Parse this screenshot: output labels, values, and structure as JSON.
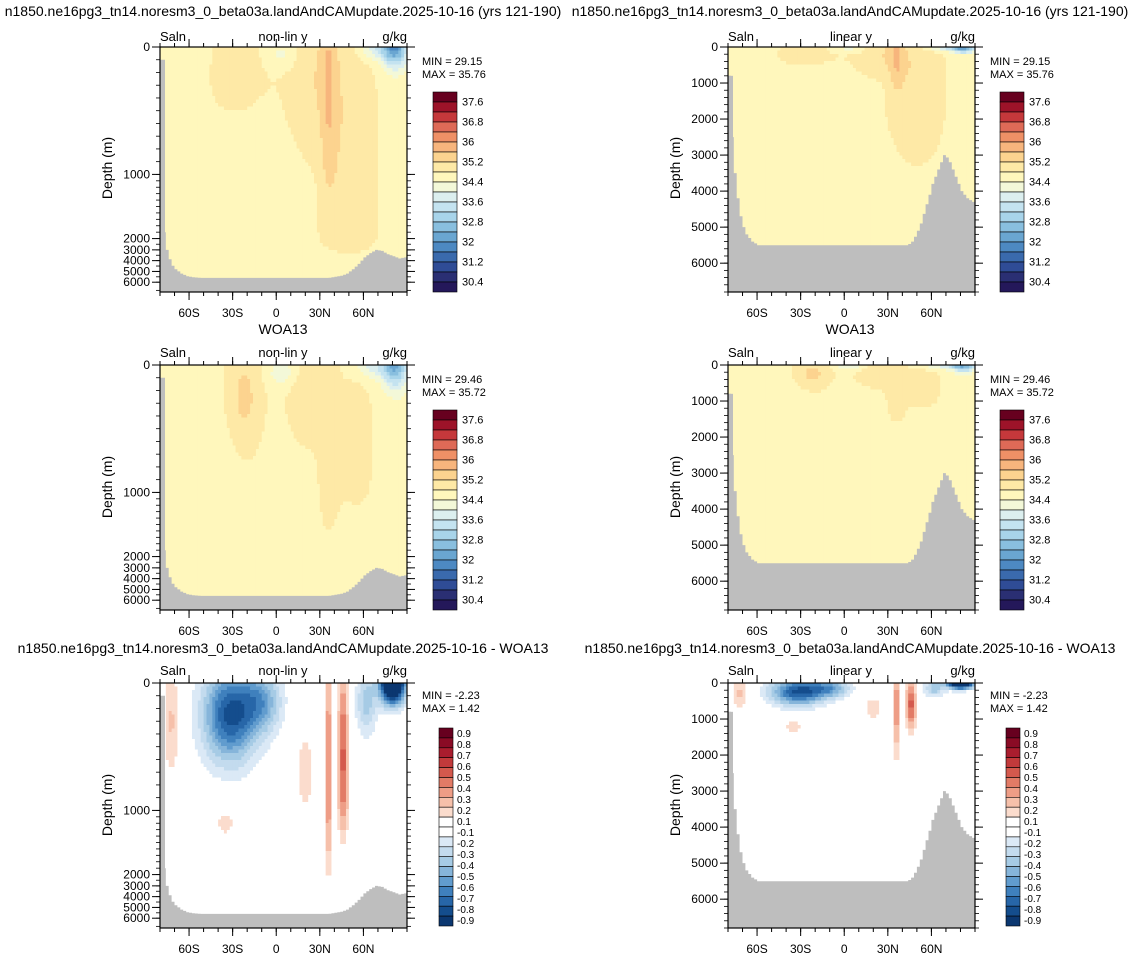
{
  "figure": {
    "titles": {
      "model": "n1850.ne16pg3_tn14.noresm3_0_beta03a.landAndCAMupdate.2025-10-16 (yrs 121-190)",
      "obs": "WOA13",
      "diff": "n1850.ne16pg3_tn14.noresm3_0_beta03a.landAndCAMupdate.2025-10-16 - WOA13"
    },
    "variable": "Saln",
    "units": "g/kg",
    "modes": {
      "nonlin": "non-lin y",
      "lin": "linear y"
    },
    "ylabel": "Depth (m)",
    "colors": {
      "land": "#bebebe",
      "background": "#ffffff",
      "frame": "#000000"
    }
  },
  "chart_data": [
    {
      "id": "model-nonlin",
      "type": "heatmap",
      "field": "model",
      "yscale": "nonlinear",
      "title": "n1850.ne16pg3_tn14.noresm3_0_beta03a.landAndCAMupdate.2025-10-16 (yrs 121-190)",
      "left_label": "Saln",
      "center_label": "non-lin y",
      "right_label": "g/kg",
      "ylabel": "Depth (m)",
      "xticks": [
        "60S",
        "30S",
        "0",
        "30N",
        "60N"
      ],
      "xtick_values": [
        -60,
        -30,
        0,
        30,
        60
      ],
      "xlim": [
        -80,
        90
      ],
      "yticks": [
        "0",
        "1000",
        "2000",
        "3000",
        "4000",
        "5000",
        "6000"
      ],
      "ytick_values": [
        0,
        1000,
        2000,
        3000,
        4000,
        5000,
        6000
      ],
      "min_label": "MIN =  29.15",
      "max_label": "MAX =  35.76"
    },
    {
      "id": "model-lin",
      "type": "heatmap",
      "field": "model",
      "yscale": "linear",
      "title": "n1850.ne16pg3_tn14.noresm3_0_beta03a.landAndCAMupdate.2025-10-16 (yrs 121-190)",
      "left_label": "Saln",
      "center_label": "linear y",
      "right_label": "g/kg",
      "ylabel": "Depth (m)",
      "xticks": [
        "60S",
        "30S",
        "0",
        "30N",
        "60N"
      ],
      "xtick_values": [
        -60,
        -30,
        0,
        30,
        60
      ],
      "xlim": [
        -80,
        90
      ],
      "yticks": [
        "0",
        "1000",
        "2000",
        "3000",
        "4000",
        "5000",
        "6000"
      ],
      "ytick_values": [
        0,
        1000,
        2000,
        3000,
        4000,
        5000,
        6000
      ],
      "min_label": "MIN =  29.15",
      "max_label": "MAX =  35.76"
    },
    {
      "id": "obs-nonlin",
      "type": "heatmap",
      "field": "obs",
      "yscale": "nonlinear",
      "title": "WOA13",
      "left_label": "Saln",
      "center_label": "non-lin y",
      "right_label": "g/kg",
      "ylabel": "Depth (m)",
      "xticks": [
        "60S",
        "30S",
        "0",
        "30N",
        "60N"
      ],
      "xtick_values": [
        -60,
        -30,
        0,
        30,
        60
      ],
      "xlim": [
        -80,
        90
      ],
      "yticks": [
        "0",
        "1000",
        "2000",
        "3000",
        "4000",
        "5000",
        "6000"
      ],
      "ytick_values": [
        0,
        1000,
        2000,
        3000,
        4000,
        5000,
        6000
      ],
      "min_label": "MIN =  29.46",
      "max_label": "MAX =  35.72"
    },
    {
      "id": "obs-lin",
      "type": "heatmap",
      "field": "obs",
      "yscale": "linear",
      "title": "WOA13",
      "left_label": "Saln",
      "center_label": "linear y",
      "right_label": "g/kg",
      "ylabel": "Depth (m)",
      "xticks": [
        "60S",
        "30S",
        "0",
        "30N",
        "60N"
      ],
      "xtick_values": [
        -60,
        -30,
        0,
        30,
        60
      ],
      "xlim": [
        -80,
        90
      ],
      "yticks": [
        "0",
        "1000",
        "2000",
        "3000",
        "4000",
        "5000",
        "6000"
      ],
      "ytick_values": [
        0,
        1000,
        2000,
        3000,
        4000,
        5000,
        6000
      ],
      "min_label": "MIN =  29.46",
      "max_label": "MAX =  35.72"
    },
    {
      "id": "diff-nonlin",
      "type": "heatmap",
      "field": "diff",
      "yscale": "nonlinear",
      "title": "n1850.ne16pg3_tn14.noresm3_0_beta03a.landAndCAMupdate.2025-10-16 - WOA13",
      "left_label": "Saln",
      "center_label": "non-lin y",
      "right_label": "g/kg",
      "ylabel": "Depth (m)",
      "xticks": [
        "60S",
        "30S",
        "0",
        "30N",
        "60N"
      ],
      "xtick_values": [
        -60,
        -30,
        0,
        30,
        60
      ],
      "xlim": [
        -80,
        90
      ],
      "yticks": [
        "0",
        "1000",
        "2000",
        "3000",
        "4000",
        "5000",
        "6000"
      ],
      "ytick_values": [
        0,
        1000,
        2000,
        3000,
        4000,
        5000,
        6000
      ],
      "min_label": "MIN =  -2.23",
      "max_label": "MAX =   1.42"
    },
    {
      "id": "diff-lin",
      "type": "heatmap",
      "field": "diff",
      "yscale": "linear",
      "title": "n1850.ne16pg3_tn14.noresm3_0_beta03a.landAndCAMupdate.2025-10-16 - WOA13",
      "left_label": "Saln",
      "center_label": "linear y",
      "right_label": "g/kg",
      "ylabel": "Depth (m)",
      "xticks": [
        "60S",
        "30S",
        "0",
        "30N",
        "60N"
      ],
      "xtick_values": [
        -60,
        -30,
        0,
        30,
        60
      ],
      "xlim": [
        -80,
        90
      ],
      "yticks": [
        "0",
        "1000",
        "2000",
        "3000",
        "4000",
        "5000",
        "6000"
      ],
      "ytick_values": [
        0,
        1000,
        2000,
        3000,
        4000,
        5000,
        6000
      ],
      "min_label": "MIN =  -2.23",
      "max_label": "MAX =   1.42"
    }
  ],
  "colorbars": {
    "salinity": {
      "labels": [
        "37.6",
        "36.8",
        "36",
        "35.2",
        "34.4",
        "33.6",
        "32.8",
        "32",
        "31.2",
        "30.4"
      ],
      "colors": [
        "#67001f",
        "#9d1329",
        "#c5383b",
        "#de6a57",
        "#ef9066",
        "#f7b57d",
        "#fcd38f",
        "#fee9a6",
        "#fff7bc",
        "#f3f8d8",
        "#dcefef",
        "#c4e3f0",
        "#a8d4ea",
        "#89bfdf",
        "#6aa6d1",
        "#4d89c2",
        "#3a6aad",
        "#2f4c96",
        "#2a2f73",
        "#24185a"
      ]
    },
    "difference": {
      "labels": [
        "0.9",
        "0.8",
        "0.7",
        "0.6",
        "0.5",
        "0.4",
        "0.3",
        "0.2",
        "0.1",
        "-0.1",
        "-0.2",
        "-0.3",
        "-0.4",
        "-0.5",
        "-0.6",
        "-0.7",
        "-0.8",
        "-0.9"
      ],
      "colors": [
        "#67001f",
        "#8a0b25",
        "#a91d2e",
        "#c23a3b",
        "#d4594d",
        "#e27b66",
        "#ee9d86",
        "#f6c0aa",
        "#fbdccd",
        "#ffffff",
        "#ffffff",
        "#dbe9f6",
        "#c3dbee",
        "#a6cbe5",
        "#86b5da",
        "#619cce",
        "#3f80bd",
        "#2766a8",
        "#144d8d",
        "#0b3770"
      ]
    }
  },
  "land": {
    "nonlinear_seafloor": {
      "lat": [
        -80,
        -76,
        -73,
        -70,
        -66,
        -62,
        -58,
        -52,
        -40,
        -20,
        0,
        20,
        35,
        40,
        44,
        48,
        52,
        56,
        60,
        64,
        68,
        72,
        76,
        80,
        84,
        88,
        90
      ],
      "depth": [
        800,
        3000,
        4300,
        4800,
        5200,
        5450,
        5550,
        5600,
        5600,
        5600,
        5600,
        5600,
        5600,
        5500,
        5400,
        5200,
        4800,
        4300,
        3700,
        3300,
        3000,
        3100,
        3400,
        3600,
        3800,
        3700,
        3800
      ]
    },
    "linear_seafloor": {
      "lat": [
        -80,
        -78,
        -76,
        -74,
        -72,
        -70,
        -68,
        -66,
        -64,
        -62,
        -60,
        -56,
        -52,
        -45,
        -30,
        0,
        20,
        40,
        43,
        46,
        49,
        52,
        55,
        58,
        60,
        62,
        64,
        66,
        68,
        71,
        74,
        77,
        80,
        84,
        88,
        90
      ],
      "depth": [
        800,
        2500,
        3500,
        4200,
        4700,
        5000,
        5200,
        5300,
        5400,
        5450,
        5500,
        5500,
        5500,
        5500,
        5500,
        5500,
        5500,
        5500,
        5500,
        5400,
        5200,
        4900,
        4500,
        4100,
        3800,
        3600,
        3400,
        3200,
        3000,
        3100,
        3400,
        3700,
        4000,
        4200,
        4300,
        4300
      ]
    }
  }
}
